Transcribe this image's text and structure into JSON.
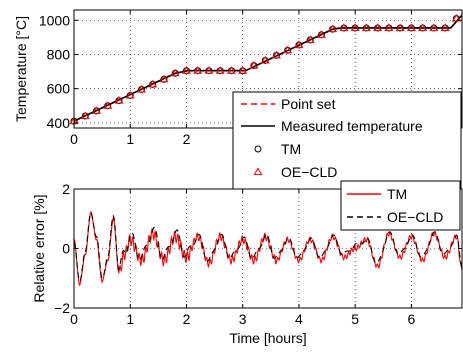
{
  "chart_data": [
    {
      "type": "line",
      "ylabel": "Temperature [°C]",
      "xlabel": "",
      "xlim": [
        0,
        6.9
      ],
      "ylim": [
        370,
        1060
      ],
      "xticks": [
        "0",
        "1",
        "2",
        "3",
        "4",
        "5",
        "6"
      ],
      "yticks": [
        "400",
        "600",
        "800",
        "1000"
      ],
      "grid": true,
      "legend": {
        "placement": "bottom-right",
        "entries": [
          "Point set",
          "Measured temperature",
          "TM",
          "OE−CLD"
        ]
      },
      "series": [
        {
          "name": "Point set",
          "style": "dashed",
          "color": "#ff0000",
          "x": [
            0,
            1.8,
            2.02,
            3.05,
            4.6,
            4.75,
            6.7,
            6.9
          ],
          "y": [
            410,
            690,
            705,
            705,
            948,
            955,
            955,
            1030
          ]
        },
        {
          "name": "Measured temperature",
          "style": "solid",
          "color": "#000000",
          "x": [
            0,
            1.8,
            2.02,
            3.05,
            4.6,
            4.75,
            6.7,
            6.9
          ],
          "y": [
            410,
            690,
            705,
            705,
            948,
            955,
            955,
            1030
          ]
        },
        {
          "name": "TM",
          "marker": "circle",
          "color": "#000000",
          "x": [
            0,
            0.2,
            0.4,
            0.6,
            0.8,
            1.0,
            1.2,
            1.4,
            1.6,
            1.8,
            2.0,
            2.2,
            2.4,
            2.6,
            2.8,
            3.0,
            3.2,
            3.4,
            3.6,
            3.8,
            4.0,
            4.2,
            4.4,
            4.6,
            4.8,
            5.0,
            5.2,
            5.4,
            5.6,
            5.8,
            6.0,
            6.2,
            6.4,
            6.6,
            6.8
          ],
          "y": [
            410,
            440,
            470,
            500,
            530,
            560,
            595,
            625,
            655,
            690,
            705,
            705,
            705,
            705,
            705,
            705,
            735,
            765,
            795,
            825,
            855,
            885,
            915,
            948,
            955,
            955,
            955,
            955,
            955,
            955,
            955,
            955,
            955,
            955,
            1010
          ]
        },
        {
          "name": "OE−CLD",
          "marker": "triangle",
          "color": "#ff0000",
          "x": [
            0,
            0.2,
            0.4,
            0.6,
            0.8,
            1.0,
            1.2,
            1.4,
            1.6,
            1.8,
            2.0,
            2.2,
            2.4,
            2.6,
            2.8,
            3.0,
            3.2,
            3.4,
            3.6,
            3.8,
            4.0,
            4.2,
            4.4,
            4.6,
            4.8,
            5.0,
            5.2,
            5.4,
            5.6,
            5.8,
            6.0,
            6.2,
            6.4,
            6.6,
            6.8
          ],
          "y": [
            410,
            440,
            470,
            500,
            530,
            560,
            595,
            625,
            655,
            690,
            705,
            705,
            705,
            705,
            705,
            705,
            735,
            765,
            795,
            825,
            855,
            885,
            915,
            948,
            955,
            955,
            955,
            955,
            955,
            955,
            955,
            955,
            955,
            955,
            1010
          ]
        }
      ]
    },
    {
      "type": "line",
      "ylabel": "Relative error [%]",
      "xlabel": "Time [hours]",
      "xlim": [
        0,
        6.9
      ],
      "ylim": [
        -2,
        2
      ],
      "xticks": [
        "0",
        "1",
        "2",
        "3",
        "4",
        "5",
        "6"
      ],
      "yticks": [
        "−2",
        "0",
        "2"
      ],
      "grid": true,
      "legend": {
        "placement": "top-right",
        "entries": [
          "TM",
          "OE−CLD"
        ]
      },
      "series": [
        {
          "name": "TM",
          "style": "solid",
          "color": "#ff0000",
          "x": [
            0,
            0.1,
            0.2,
            0.3,
            0.4,
            0.5,
            0.6,
            0.7,
            0.8,
            0.9,
            1.0,
            1.2,
            1.4,
            1.6,
            1.8,
            2.0,
            2.2,
            2.4,
            2.6,
            2.8,
            3.0,
            3.2,
            3.4,
            3.6,
            3.8,
            4.0,
            4.2,
            4.4,
            4.6,
            4.8,
            5.0,
            5.2,
            5.4,
            5.6,
            5.8,
            6.0,
            6.2,
            6.4,
            6.6,
            6.8,
            6.9
          ],
          "y": [
            0.3,
            -1.2,
            -0.2,
            1.2,
            0.3,
            -1.1,
            -0.4,
            1.0,
            -0.8,
            -0.2,
            0.3,
            -0.4,
            0.5,
            -0.4,
            0.4,
            -0.3,
            0.4,
            -0.5,
            0.4,
            -0.4,
            0.3,
            -0.4,
            0.4,
            -0.4,
            0.3,
            -0.4,
            0.3,
            -0.4,
            0.4,
            -0.3,
            0.0,
            0.3,
            -0.6,
            0.5,
            -0.3,
            0.4,
            -0.4,
            0.5,
            -0.3,
            0.4,
            -0.7
          ]
        },
        {
          "name": "OE−CLD",
          "style": "dashed",
          "color": "#000000",
          "x": [
            0,
            0.1,
            0.2,
            0.3,
            0.4,
            0.5,
            0.6,
            0.7,
            0.8,
            0.9,
            1.0,
            1.2,
            1.4,
            1.6,
            1.8,
            2.0,
            2.2,
            2.4,
            2.6,
            2.8,
            3.0,
            3.2,
            3.4,
            3.6,
            3.8,
            4.0,
            4.2,
            4.4,
            4.6,
            4.8,
            5.0,
            5.2,
            5.4,
            5.6,
            5.8,
            6.0,
            6.2,
            6.4,
            6.6,
            6.8,
            6.9
          ],
          "y": [
            0.2,
            -1.1,
            -0.1,
            1.2,
            0.4,
            -1.0,
            -0.3,
            1.1,
            -0.7,
            -0.1,
            0.4,
            -0.3,
            0.6,
            -0.3,
            0.5,
            -0.2,
            0.4,
            -0.4,
            0.4,
            -0.3,
            0.3,
            -0.3,
            0.4,
            -0.3,
            0.3,
            -0.3,
            0.3,
            -0.3,
            0.4,
            -0.2,
            0.1,
            0.3,
            -0.5,
            0.5,
            -0.2,
            0.4,
            -0.3,
            0.5,
            -0.2,
            0.4,
            -0.6
          ]
        }
      ]
    }
  ]
}
